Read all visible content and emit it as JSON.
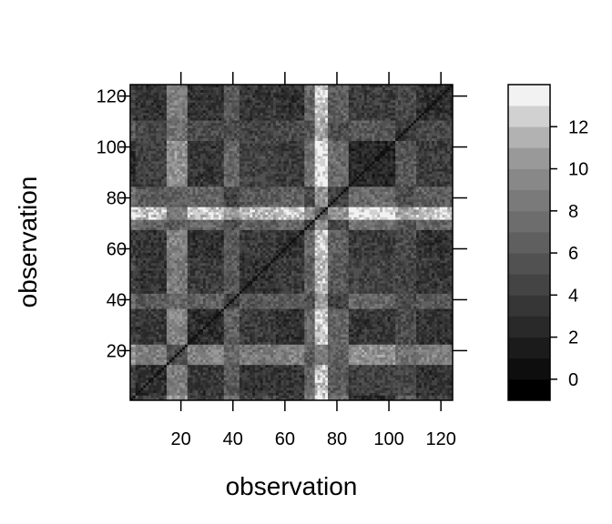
{
  "chart_data": {
    "type": "heatmap",
    "xlabel": "observation",
    "ylabel": "observation",
    "n": 124,
    "xlim": [
      0.5,
      124.5
    ],
    "ylim": [
      0.5,
      124.5
    ],
    "x_ticks": [
      20,
      40,
      60,
      80,
      100,
      120
    ],
    "y_ticks": [
      20,
      40,
      60,
      80,
      100,
      120
    ],
    "colorbar": {
      "min": -1,
      "max": 14,
      "levels": 15,
      "ticks": [
        0,
        2,
        4,
        6,
        8,
        10,
        12
      ],
      "colors": [
        "#000000",
        "#0e0e0e",
        "#1b1b1b",
        "#292929",
        "#363636",
        "#444444",
        "#515151",
        "#5f5f5f",
        "#6d6d6d",
        "#7a7a7a",
        "#888888",
        "#999999",
        "#b2b2b2",
        "#d1d1d1",
        "#f2f2f2"
      ]
    },
    "groups": [
      {
        "range": [
          1,
          2
        ],
        "level": 0.1
      },
      {
        "range": [
          3,
          14
        ],
        "level": 0.28
      },
      {
        "range": [
          15,
          22
        ],
        "level": 0.7
      },
      {
        "range": [
          23,
          36
        ],
        "level": 0.22
      },
      {
        "range": [
          37,
          42
        ],
        "level": 0.5
      },
      {
        "range": [
          43,
          56
        ],
        "level": 0.3
      },
      {
        "range": [
          57,
          67
        ],
        "level": 0.24
      },
      {
        "range": [
          68,
          71
        ],
        "level": 0.55
      },
      {
        "range": [
          72,
          76
        ],
        "level": 0.95
      },
      {
        "range": [
          77,
          84
        ],
        "level": 0.52
      },
      {
        "range": [
          85,
          102
        ],
        "level": 0.14
      },
      {
        "range": [
          103,
          110
        ],
        "level": 0.4
      },
      {
        "range": [
          111,
          124
        ],
        "level": 0.26
      }
    ],
    "grid": false,
    "legend": "right"
  }
}
